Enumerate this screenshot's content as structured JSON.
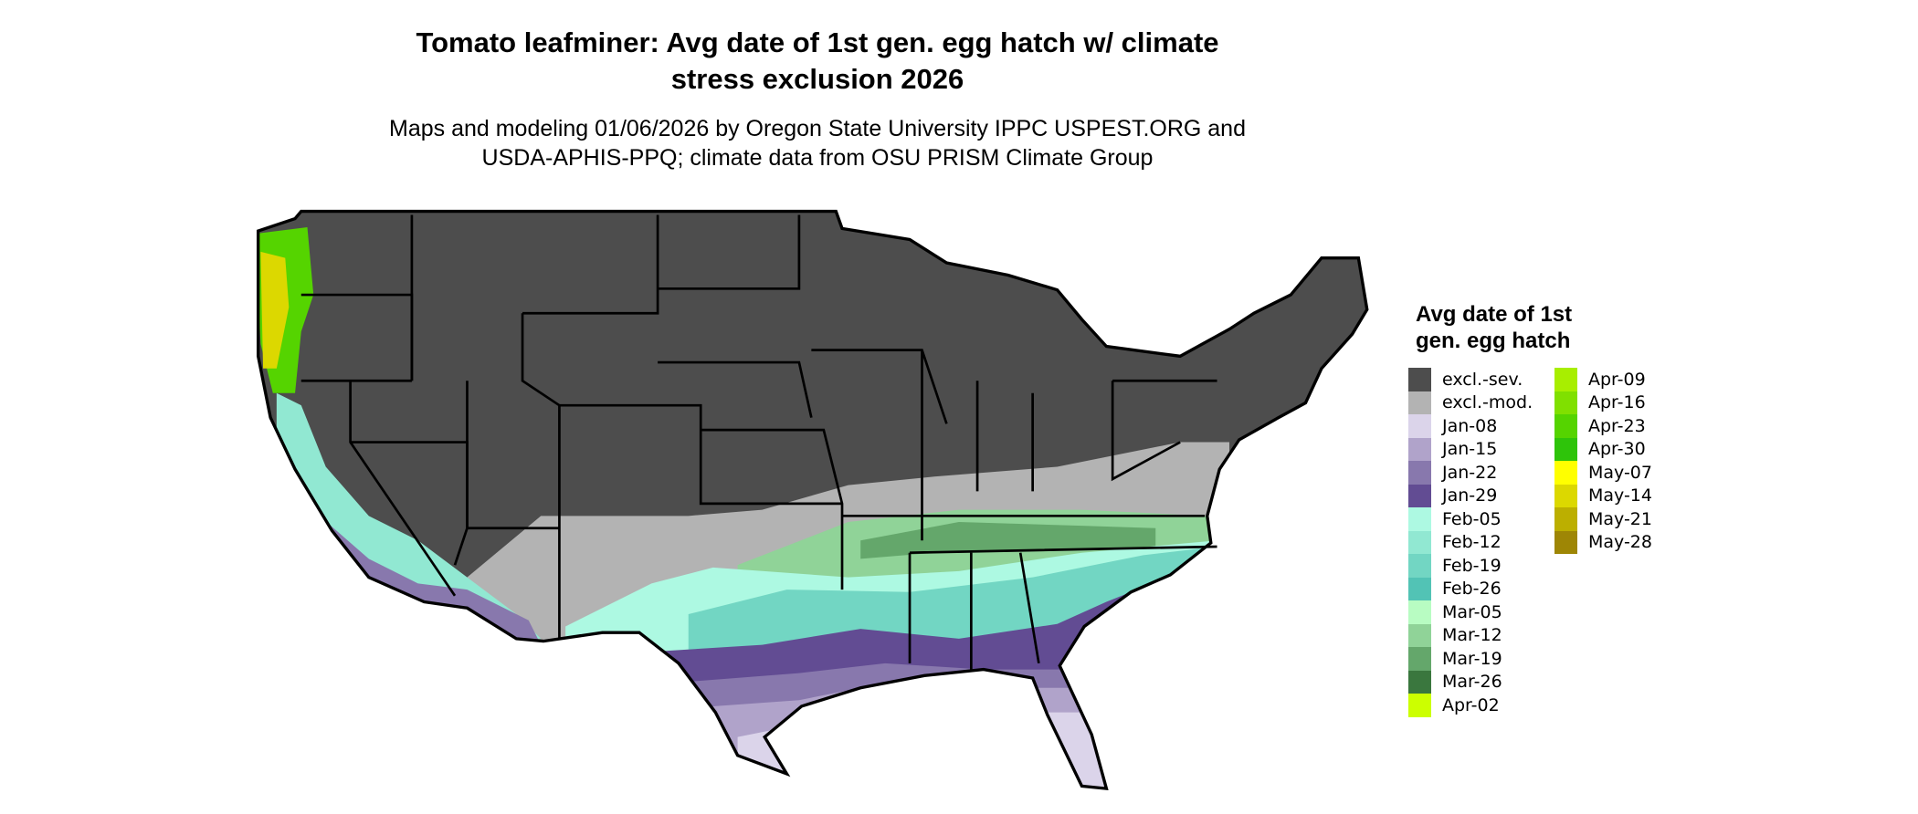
{
  "title_line1": "Tomato leafminer: Avg date of 1st gen. egg hatch w/ climate",
  "title_line2": "stress exclusion 2026",
  "subtitle_line1": "Maps and modeling 01/06/2026 by Oregon State University IPPC USPEST.ORG and",
  "subtitle_line2": "USDA-APHIS-PPQ; climate data from OSU PRISM Climate Group",
  "legend": {
    "title_line1": "Avg date of 1st",
    "title_line2": "gen. egg hatch",
    "items": [
      {
        "label": "excl.-sev.",
        "color": "#4d4d4d"
      },
      {
        "label": "excl.-mod.",
        "color": "#b3b3b3"
      },
      {
        "label": "Jan-08",
        "color": "#dbd4ea"
      },
      {
        "label": "Jan-15",
        "color": "#b0a3ca"
      },
      {
        "label": "Jan-22",
        "color": "#8878ad"
      },
      {
        "label": "Jan-29",
        "color": "#624c93"
      },
      {
        "label": "Feb-05",
        "color": "#adf9e2"
      },
      {
        "label": "Feb-12",
        "color": "#91e8d2"
      },
      {
        "label": "Feb-19",
        "color": "#72d6c3"
      },
      {
        "label": "Feb-26",
        "color": "#52c3b5"
      },
      {
        "label": "Mar-05",
        "color": "#b8fcc2"
      },
      {
        "label": "Mar-12",
        "color": "#90d398"
      },
      {
        "label": "Mar-19",
        "color": "#64a76b"
      },
      {
        "label": "Mar-26",
        "color": "#3a773e"
      },
      {
        "label": "Apr-02",
        "color": "#ccff00"
      },
      {
        "label": "Apr-09",
        "color": "#a8ee00"
      },
      {
        "label": "Apr-16",
        "color": "#80e000"
      },
      {
        "label": "Apr-23",
        "color": "#55d400"
      },
      {
        "label": "Apr-30",
        "color": "#2ec40a"
      },
      {
        "label": "May-07",
        "color": "#ffff00"
      },
      {
        "label": "May-14",
        "color": "#dcd800"
      },
      {
        "label": "May-21",
        "color": "#bcaf00"
      },
      {
        "label": "May-28",
        "color": "#9e8605"
      }
    ]
  }
}
